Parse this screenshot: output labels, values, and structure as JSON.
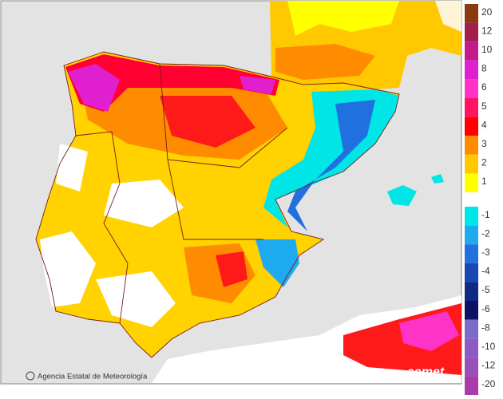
{
  "legend": {
    "items": [
      {
        "label": "20",
        "color": "#8b3a10"
      },
      {
        "label": "12",
        "color": "#a3204e"
      },
      {
        "label": "10",
        "color": "#c41a8c"
      },
      {
        "label": "8",
        "color": "#e020d0"
      },
      {
        "label": "6",
        "color": "#ff33c8"
      },
      {
        "label": "5",
        "color": "#ff1464"
      },
      {
        "label": "4",
        "color": "#ff0000"
      },
      {
        "label": "3",
        "color": "#ff8c00"
      },
      {
        "label": "2",
        "color": "#ffc800"
      },
      {
        "label": "1",
        "color": "#ffff00"
      },
      {
        "label": "-1",
        "color": "#00e6e6"
      },
      {
        "label": "-2",
        "color": "#1eaaf0"
      },
      {
        "label": "-3",
        "color": "#2070e0"
      },
      {
        "label": "-4",
        "color": "#1848b4"
      },
      {
        "label": "-5",
        "color": "#102a84"
      },
      {
        "label": "-6",
        "color": "#0c1264"
      },
      {
        "label": "-8",
        "color": "#7a6cc8"
      },
      {
        "label": "-10",
        "color": "#8c5cc4"
      },
      {
        "label": "-12",
        "color": "#9a50b8"
      },
      {
        "label": "-20",
        "color": "#a83ca8"
      }
    ]
  },
  "footer": {
    "credit": "Agencia Estatal de Meteorología",
    "logo": "aemet"
  }
}
